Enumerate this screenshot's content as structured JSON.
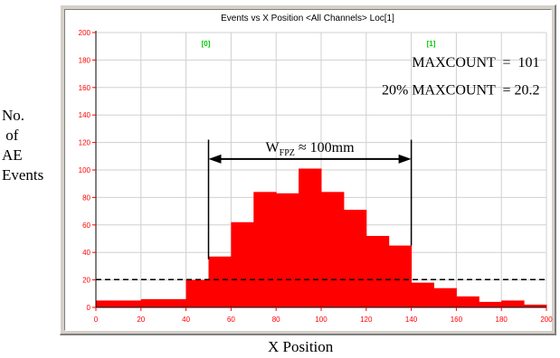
{
  "chart_data": {
    "type": "bar",
    "title": "Events vs X Position <All Channels> Loc[1]",
    "xlabel": "X Position",
    "ylabel_lines": [
      "No.",
      " of",
      "AE",
      "Events"
    ],
    "xlim": [
      0,
      200
    ],
    "ylim": [
      0,
      200
    ],
    "x_ticks": [
      0,
      20,
      40,
      60,
      80,
      100,
      120,
      140,
      160,
      180,
      200
    ],
    "y_ticks": [
      0,
      20,
      40,
      60,
      80,
      100,
      120,
      140,
      160,
      180,
      200
    ],
    "grid": true,
    "bin_width": 10,
    "bins": [
      {
        "x0": 0,
        "x1": 10,
        "value": 5
      },
      {
        "x0": 10,
        "x1": 20,
        "value": 5
      },
      {
        "x0": 20,
        "x1": 30,
        "value": 6
      },
      {
        "x0": 30,
        "x1": 40,
        "value": 6
      },
      {
        "x0": 40,
        "x1": 50,
        "value": 20
      },
      {
        "x0": 50,
        "x1": 60,
        "value": 37
      },
      {
        "x0": 60,
        "x1": 70,
        "value": 62
      },
      {
        "x0": 70,
        "x1": 80,
        "value": 84
      },
      {
        "x0": 80,
        "x1": 90,
        "value": 83
      },
      {
        "x0": 90,
        "x1": 100,
        "value": 101
      },
      {
        "x0": 100,
        "x1": 110,
        "value": 84
      },
      {
        "x0": 110,
        "x1": 120,
        "value": 71
      },
      {
        "x0": 120,
        "x1": 130,
        "value": 52
      },
      {
        "x0": 130,
        "x1": 140,
        "value": 45
      },
      {
        "x0": 140,
        "x1": 150,
        "value": 18
      },
      {
        "x0": 150,
        "x1": 160,
        "value": 14
      },
      {
        "x0": 160,
        "x1": 170,
        "value": 8
      },
      {
        "x0": 170,
        "x1": 180,
        "value": 4
      },
      {
        "x0": 180,
        "x1": 190,
        "value": 5
      },
      {
        "x0": 190,
        "x1": 200,
        "value": 2
      }
    ],
    "threshold": {
      "value": 20.2,
      "style": "dashed"
    },
    "markers": [
      {
        "label": "[0]",
        "x": 50
      },
      {
        "label": "[1]",
        "x": 150
      }
    ],
    "annotations": {
      "maxcount": "MAXCOUNT  =  101",
      "pct_maxcount": "20% MAXCOUNT  = 20.2",
      "width_prefix": "W",
      "width_sub": "FPZ",
      "width_suffix": " ≈ 100mm",
      "width_range": [
        50,
        140
      ]
    },
    "colors": {
      "bar": "#ff0000",
      "axis_text": "#ff0000",
      "marker": "#00cc00",
      "grid": "#d0d0d0",
      "frame": "#d4d0c8"
    }
  }
}
